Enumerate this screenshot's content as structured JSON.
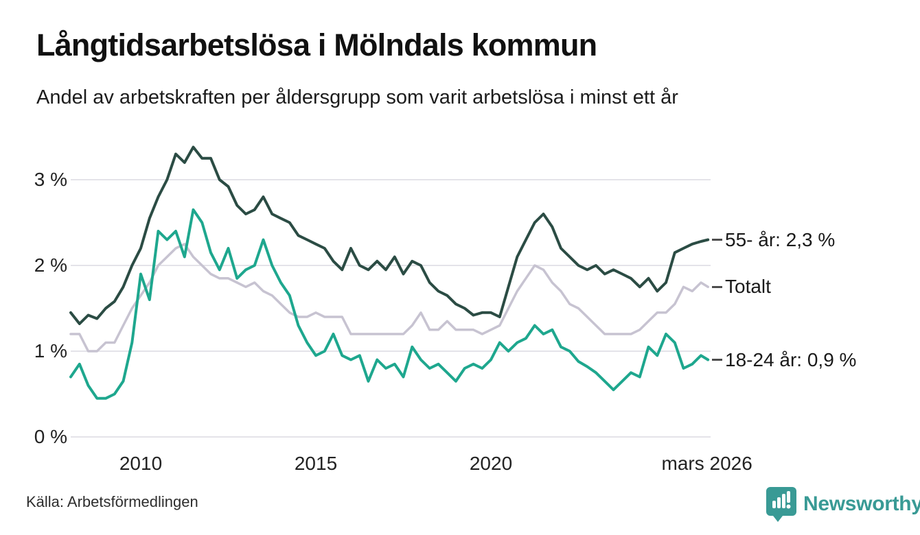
{
  "header": {
    "title": "Långtidsarbetslösa i Mölndals kommun",
    "subtitle": "Andel av arbetskraften per åldersgrupp som varit arbetslösa i minst ett år"
  },
  "chart_data": {
    "type": "line",
    "title": "Långtidsarbetslösa i Mölndals kommun",
    "subtitle": "Andel av arbetskraften per åldersgrupp som varit arbetslösa i minst ett år",
    "unit": "% av arbetskraften",
    "grid": true,
    "legend_position": "line-end-labels-right",
    "x_axis": {
      "range": [
        2008,
        2026.25
      ],
      "ticks": [
        {
          "label": "2010",
          "year": 2010
        },
        {
          "label": "2015",
          "year": 2015
        },
        {
          "label": "2020",
          "year": 2020
        },
        {
          "label": "mars 2026",
          "year": 2026.17
        }
      ]
    },
    "y_axis": {
      "range": [
        0,
        3.5
      ],
      "ticks": [
        {
          "label": "0 %",
          "value": 0
        },
        {
          "label": "1 %",
          "value": 1
        },
        {
          "label": "2 %",
          "value": 2
        },
        {
          "label": "3 %",
          "value": 3
        }
      ]
    },
    "x": [
      2008,
      2008.25,
      2008.5,
      2008.75,
      2009,
      2009.25,
      2009.5,
      2009.75,
      2010,
      2010.25,
      2010.5,
      2010.75,
      2011,
      2011.25,
      2011.5,
      2011.75,
      2012,
      2012.25,
      2012.5,
      2012.75,
      2013,
      2013.25,
      2013.5,
      2013.75,
      2014,
      2014.25,
      2014.5,
      2014.75,
      2015,
      2015.25,
      2015.5,
      2015.75,
      2016,
      2016.25,
      2016.5,
      2016.75,
      2017,
      2017.25,
      2017.5,
      2017.75,
      2018,
      2018.25,
      2018.5,
      2018.75,
      2019,
      2019.25,
      2019.5,
      2019.75,
      2020,
      2020.25,
      2020.5,
      2020.75,
      2021,
      2021.25,
      2021.5,
      2021.75,
      2022,
      2022.25,
      2022.5,
      2022.75,
      2023,
      2023.25,
      2023.5,
      2023.75,
      2024,
      2024.25,
      2024.5,
      2024.75,
      2025,
      2025.25,
      2025.5,
      2025.75,
      2026,
      2026.2
    ],
    "series": [
      {
        "name": "Totalt",
        "end_label": "Totalt",
        "end_value_label": "",
        "color": "#c7c3d1",
        "values": [
          1.2,
          1.2,
          1.0,
          1.0,
          1.1,
          1.1,
          1.3,
          1.5,
          1.65,
          1.8,
          2.0,
          2.1,
          2.2,
          2.25,
          2.1,
          2.0,
          1.9,
          1.85,
          1.85,
          1.8,
          1.75,
          1.8,
          1.7,
          1.65,
          1.55,
          1.45,
          1.4,
          1.4,
          1.45,
          1.4,
          1.4,
          1.4,
          1.2,
          1.2,
          1.2,
          1.2,
          1.2,
          1.2,
          1.2,
          1.3,
          1.45,
          1.25,
          1.25,
          1.35,
          1.25,
          1.25,
          1.25,
          1.2,
          1.25,
          1.3,
          1.5,
          1.7,
          1.85,
          2.0,
          1.95,
          1.8,
          1.7,
          1.55,
          1.5,
          1.4,
          1.3,
          1.2,
          1.2,
          1.2,
          1.2,
          1.25,
          1.35,
          1.45,
          1.45,
          1.55,
          1.75,
          1.7,
          1.8,
          1.75
        ]
      },
      {
        "name": "18-24 år",
        "end_label": "18-24 år: 0,9 %",
        "end_value_label": "0,9 %",
        "color": "#1ea78e",
        "values": [
          0.7,
          0.85,
          0.6,
          0.45,
          0.45,
          0.5,
          0.65,
          1.1,
          1.9,
          1.6,
          2.4,
          2.3,
          2.4,
          2.1,
          2.65,
          2.5,
          2.15,
          1.95,
          2.2,
          1.85,
          1.95,
          2.0,
          2.3,
          2.0,
          1.8,
          1.65,
          1.3,
          1.1,
          0.95,
          1.0,
          1.2,
          0.95,
          0.9,
          0.95,
          0.65,
          0.9,
          0.8,
          0.85,
          0.7,
          1.05,
          0.9,
          0.8,
          0.85,
          0.75,
          0.65,
          0.8,
          0.85,
          0.8,
          0.9,
          1.1,
          1.0,
          1.1,
          1.15,
          1.3,
          1.2,
          1.25,
          1.05,
          1.0,
          0.88,
          0.82,
          0.75,
          0.65,
          0.55,
          0.65,
          0.75,
          0.7,
          1.05,
          0.95,
          1.2,
          1.1,
          0.8,
          0.85,
          0.95,
          0.9
        ]
      },
      {
        "name": "55- år",
        "end_label": "55- år: 2,3 %",
        "end_value_label": "2,3 %",
        "color": "#2b4c44",
        "values": [
          1.45,
          1.32,
          1.42,
          1.38,
          1.5,
          1.58,
          1.75,
          2.0,
          2.2,
          2.55,
          2.8,
          3.0,
          3.3,
          3.2,
          3.38,
          3.25,
          3.25,
          3.0,
          2.92,
          2.7,
          2.6,
          2.65,
          2.8,
          2.6,
          2.55,
          2.5,
          2.35,
          2.3,
          2.25,
          2.2,
          2.05,
          1.95,
          2.2,
          2.0,
          1.95,
          2.05,
          1.95,
          2.1,
          1.9,
          2.05,
          2.0,
          1.8,
          1.7,
          1.65,
          1.55,
          1.5,
          1.42,
          1.45,
          1.45,
          1.4,
          1.75,
          2.1,
          2.3,
          2.5,
          2.6,
          2.45,
          2.2,
          2.1,
          2.0,
          1.95,
          2.0,
          1.9,
          1.95,
          1.9,
          1.85,
          1.75,
          1.85,
          1.7,
          1.8,
          2.15,
          2.2,
          2.25,
          2.28,
          2.3
        ]
      }
    ]
  },
  "footer": {
    "source": "Källa: Arbetsförmedlingen",
    "brand": "Newsworthy"
  },
  "colors": {
    "grid": "#e4e3e9",
    "axis_text": "#222222",
    "connector": "#4d4d4d",
    "brand_teal": "#399a95",
    "line_total": "#c7c3d1",
    "line_18_24": "#1ea78e",
    "line_55": "#2b4c44"
  }
}
